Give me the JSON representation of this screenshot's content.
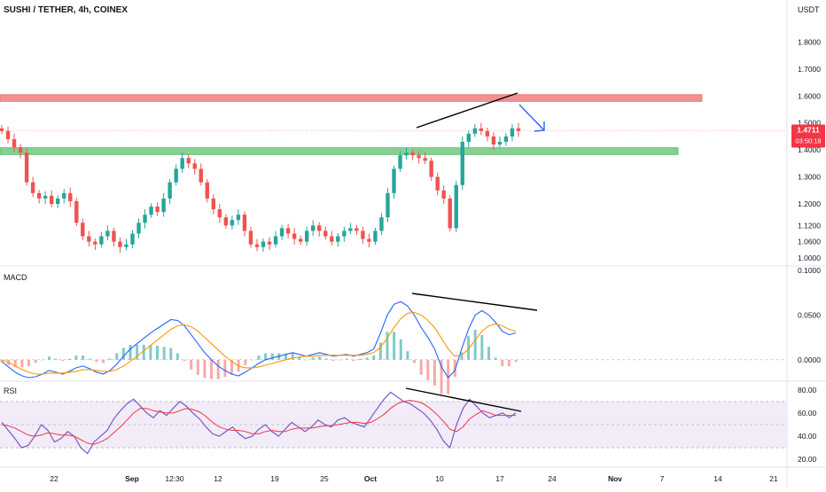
{
  "header": {
    "symbol_line": "SUSHI / TETHER, 4h, COINEX",
    "currency": "USDT"
  },
  "price_badge": {
    "price": "1.4711",
    "countdown": "03:50:18"
  },
  "panes": {
    "macd_label": "MACD",
    "rsi_label": "RSI"
  },
  "colors": {
    "up": "#26a69a",
    "down": "#ef5350",
    "resistance_zone": "#f28b8e",
    "support_zone": "#7fcf8e",
    "macd_line": "#2962ff",
    "signal_line": "#ff9800",
    "rsi_line": "#7e57c2",
    "rsi_ma": "#f23645",
    "rsi_band": "#ede7f6",
    "trendline": "#000000",
    "arrow": "#2962ff",
    "badge": "#f23645"
  },
  "chart_data": [
    {
      "type": "candlestick",
      "title": "SUSHI / TETHER, 4h, COINEX",
      "ylim": [
        0.97,
        1.89
      ],
      "y_ticks": [
        "1.8000",
        "1.7000",
        "1.6000",
        "1.5000",
        "1.4000",
        "1.3000",
        "1.2000",
        "1.1200",
        "1.0600",
        "1.0000"
      ],
      "x_ticks": [
        "22",
        "Sep",
        "12:30",
        "12",
        "19",
        "25",
        "Oct",
        "10",
        "17",
        "24",
        "Nov",
        "7",
        "14",
        "21"
      ],
      "last_price": 1.4711,
      "zones": [
        {
          "name": "resistance",
          "from": 1.58,
          "to": 1.605
        },
        {
          "name": "support",
          "from": 1.383,
          "to": 1.408
        }
      ],
      "series": [
        {
          "name": "close",
          "values": [
            1.47,
            1.44,
            1.41,
            1.39,
            1.28,
            1.24,
            1.22,
            1.23,
            1.2,
            1.22,
            1.24,
            1.21,
            1.13,
            1.08,
            1.06,
            1.05,
            1.08,
            1.1,
            1.06,
            1.04,
            1.05,
            1.09,
            1.13,
            1.16,
            1.19,
            1.17,
            1.22,
            1.28,
            1.33,
            1.37,
            1.35,
            1.33,
            1.28,
            1.22,
            1.18,
            1.15,
            1.12,
            1.14,
            1.16,
            1.1,
            1.05,
            1.04,
            1.06,
            1.05,
            1.08,
            1.11,
            1.09,
            1.07,
            1.06,
            1.1,
            1.12,
            1.1,
            1.08,
            1.06,
            1.08,
            1.1,
            1.11,
            1.1,
            1.07,
            1.06,
            1.1,
            1.15,
            1.24,
            1.33,
            1.38,
            1.39,
            1.38,
            1.37,
            1.36,
            1.3,
            1.25,
            1.22,
            1.11,
            1.27,
            1.43,
            1.46,
            1.48,
            1.47,
            1.45,
            1.42,
            1.43,
            1.45,
            1.48,
            1.47
          ]
        }
      ]
    },
    {
      "type": "line",
      "title": "MACD",
      "ylim": [
        -0.022,
        0.1
      ],
      "y_ticks": [
        "0.1000",
        "0.0500",
        "0.0000"
      ],
      "series": [
        {
          "name": "macd",
          "values": [
            -0.002,
            -0.008,
            -0.014,
            -0.018,
            -0.02,
            -0.019,
            -0.016,
            -0.012,
            -0.014,
            -0.016,
            -0.013,
            -0.009,
            -0.007,
            -0.01,
            -0.014,
            -0.016,
            -0.012,
            -0.005,
            0.004,
            0.012,
            0.018,
            0.024,
            0.03,
            0.035,
            0.04,
            0.045,
            0.044,
            0.038,
            0.028,
            0.018,
            0.008,
            0.0,
            -0.007,
            -0.012,
            -0.016,
            -0.018,
            -0.014,
            -0.009,
            -0.004,
            0.0,
            0.002,
            0.004,
            0.006,
            0.008,
            0.006,
            0.004,
            0.006,
            0.008,
            0.006,
            0.004,
            0.005,
            0.006,
            0.004,
            0.006,
            0.008,
            0.012,
            0.03,
            0.05,
            0.062,
            0.065,
            0.06,
            0.05,
            0.036,
            0.025,
            0.012,
            -0.008,
            -0.02,
            -0.012,
            0.012,
            0.034,
            0.05,
            0.055,
            0.05,
            0.042,
            0.032,
            0.028,
            0.03
          ]
        },
        {
          "name": "signal",
          "values": [
            0.0,
            -0.003,
            -0.007,
            -0.011,
            -0.014,
            -0.016,
            -0.016,
            -0.015,
            -0.015,
            -0.015,
            -0.014,
            -0.013,
            -0.011,
            -0.011,
            -0.012,
            -0.013,
            -0.013,
            -0.011,
            -0.007,
            -0.002,
            0.004,
            0.01,
            0.016,
            0.022,
            0.028,
            0.034,
            0.038,
            0.039,
            0.037,
            0.032,
            0.025,
            0.018,
            0.011,
            0.004,
            -0.002,
            -0.007,
            -0.009,
            -0.009,
            -0.008,
            -0.006,
            -0.004,
            -0.002,
            0.0,
            0.002,
            0.003,
            0.004,
            0.004,
            0.005,
            0.005,
            0.005,
            0.005,
            0.005,
            0.005,
            0.005,
            0.006,
            0.008,
            0.014,
            0.024,
            0.036,
            0.046,
            0.052,
            0.053,
            0.05,
            0.044,
            0.036,
            0.024,
            0.012,
            0.004,
            0.005,
            0.012,
            0.022,
            0.032,
            0.038,
            0.04,
            0.038,
            0.034,
            0.032
          ]
        }
      ]
    },
    {
      "type": "line",
      "title": "RSI",
      "ylim": [
        14,
        86
      ],
      "y_ticks": [
        "80.00",
        "60.00",
        "40.00",
        "20.00"
      ],
      "band": [
        30,
        70
      ],
      "series": [
        {
          "name": "rsi",
          "values": [
            52,
            45,
            38,
            30,
            32,
            40,
            50,
            45,
            35,
            38,
            44,
            40,
            30,
            25,
            35,
            40,
            45,
            55,
            62,
            68,
            72,
            66,
            60,
            56,
            62,
            58,
            64,
            70,
            66,
            60,
            55,
            48,
            42,
            40,
            44,
            48,
            42,
            38,
            40,
            46,
            50,
            44,
            40,
            46,
            52,
            48,
            44,
            48,
            54,
            50,
            48,
            54,
            56,
            52,
            50,
            48,
            56,
            64,
            72,
            78,
            74,
            70,
            68,
            64,
            60,
            54,
            46,
            36,
            30,
            50,
            64,
            72,
            66,
            60,
            56,
            58,
            60,
            56,
            60
          ]
        },
        {
          "name": "rsi_ma",
          "values": [
            50,
            49,
            47,
            44,
            41,
            40,
            41,
            43,
            42,
            41,
            41,
            40,
            37,
            34,
            33,
            35,
            38,
            43,
            48,
            54,
            60,
            64,
            64,
            62,
            61,
            60,
            60,
            62,
            64,
            63,
            61,
            57,
            52,
            48,
            46,
            45,
            45,
            44,
            42,
            42,
            44,
            45,
            44,
            44,
            46,
            47,
            47,
            47,
            48,
            49,
            49,
            50,
            51,
            52,
            52,
            51,
            52,
            55,
            59,
            64,
            68,
            70,
            71,
            70,
            68,
            64,
            59,
            53,
            46,
            44,
            48,
            55,
            59,
            62,
            60,
            58,
            58,
            58,
            58
          ]
        }
      ]
    }
  ]
}
